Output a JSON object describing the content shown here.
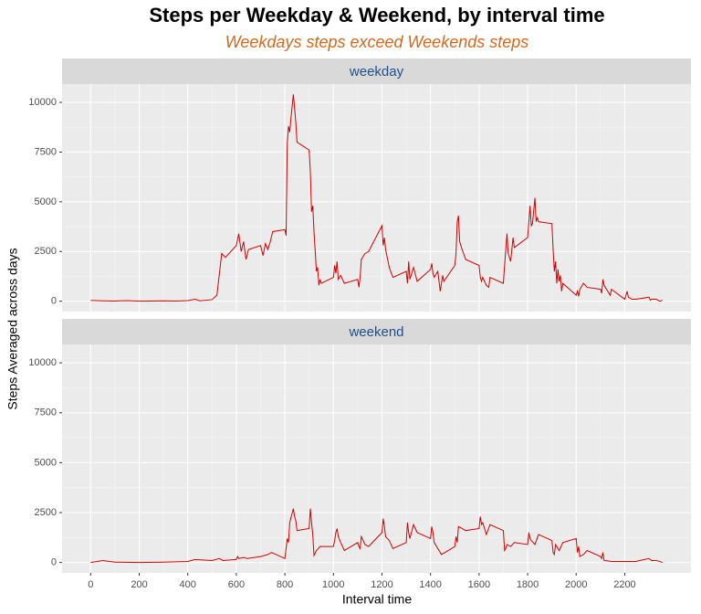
{
  "chart_data": {
    "type": "line",
    "title": "Steps per Weekday & Weekend, by interval time",
    "subtitle": "Weekdays steps exceed Weekends steps",
    "xlabel": "Interval time",
    "ylabel": "Steps Averaged across days",
    "xlim": [
      -117.75,
      2472.75
    ],
    "xticks": [
      0,
      200,
      400,
      600,
      800,
      1000,
      1200,
      1400,
      1600,
      1800,
      2000,
      2200
    ],
    "ylim": [
      -520,
      10920
    ],
    "yticks": [
      0,
      2500,
      5000,
      7500,
      10000
    ],
    "grid": true,
    "series": [
      {
        "name": "weekday",
        "color": "#d40000",
        "x": [
          0,
          50,
          100,
          150,
          200,
          250,
          300,
          350,
          400,
          430,
          450,
          500,
          520,
          540,
          555,
          600,
          610,
          620,
          630,
          640,
          650,
          700,
          710,
          720,
          730,
          740,
          750,
          800,
          805,
          810,
          815,
          820,
          825,
          835,
          840,
          845,
          850,
          900,
          905,
          910,
          915,
          920,
          930,
          935,
          940,
          945,
          950,
          1000,
          1005,
          1010,
          1015,
          1020,
          1030,
          1045,
          1100,
          1105,
          1110,
          1115,
          1130,
          1145,
          1200,
          1205,
          1210,
          1215,
          1230,
          1245,
          1300,
          1305,
          1310,
          1315,
          1330,
          1345,
          1400,
          1405,
          1410,
          1415,
          1430,
          1440,
          1450,
          1455,
          1500,
          1505,
          1510,
          1515,
          1520,
          1530,
          1545,
          1600,
          1605,
          1610,
          1615,
          1630,
          1640,
          1645,
          1700,
          1705,
          1710,
          1715,
          1720,
          1730,
          1740,
          1745,
          1800,
          1805,
          1810,
          1815,
          1820,
          1830,
          1835,
          1840,
          1845,
          1900,
          1905,
          1910,
          1915,
          1920,
          1925,
          1930,
          1935,
          1940,
          1945,
          2000,
          2005,
          2010,
          2015,
          2030,
          2045,
          2100,
          2105,
          2110,
          2115,
          2130,
          2140,
          2145,
          2200,
          2205,
          2210,
          2215,
          2230,
          2245,
          2300,
          2305,
          2310,
          2330,
          2345,
          2355
        ],
        "values": [
          40,
          20,
          10,
          30,
          5,
          10,
          20,
          10,
          30,
          100,
          20,
          80,
          300,
          2400,
          2200,
          2800,
          3400,
          2500,
          3000,
          2100,
          2600,
          2800,
          2300,
          2900,
          2600,
          3000,
          3500,
          3600,
          3300,
          8000,
          8800,
          8500,
          9200,
          10400,
          9700,
          9000,
          8000,
          7600,
          6500,
          4500,
          4800,
          3500,
          1500,
          1700,
          800,
          1100,
          900,
          1200,
          1800,
          1400,
          2000,
          1100,
          1300,
          900,
          1100,
          700,
          1200,
          2100,
          2400,
          2500,
          3800,
          2800,
          3200,
          2600,
          1700,
          1200,
          1500,
          900,
          2000,
          1100,
          1700,
          1000,
          1600,
          1900,
          1400,
          1200,
          1500,
          500,
          1300,
          1000,
          1800,
          2400,
          4000,
          4300,
          3000,
          2600,
          2100,
          1800,
          1200,
          1000,
          1200,
          800,
          700,
          1200,
          900,
          1800,
          2600,
          3400,
          2400,
          2000,
          3200,
          2700,
          3200,
          4000,
          4800,
          3800,
          3900,
          5200,
          4000,
          4200,
          4000,
          3900,
          2600,
          1500,
          2000,
          900,
          1600,
          1000,
          1300,
          500,
          900,
          300,
          500,
          250,
          600,
          900,
          700,
          600,
          400,
          1100,
          800,
          500,
          300,
          600,
          100,
          300,
          500,
          200,
          100,
          100,
          200,
          50,
          100,
          100,
          0,
          50
        ]
      },
      {
        "name": "weekend",
        "color": "#d40000",
        "x": [
          0,
          50,
          100,
          200,
          300,
          400,
          430,
          500,
          530,
          545,
          600,
          605,
          610,
          630,
          645,
          700,
          730,
          745,
          800,
          805,
          810,
          815,
          820,
          835,
          840,
          845,
          850,
          900,
          905,
          910,
          915,
          920,
          930,
          945,
          1000,
          1005,
          1010,
          1015,
          1020,
          1030,
          1045,
          1100,
          1105,
          1110,
          1115,
          1130,
          1145,
          1200,
          1205,
          1210,
          1215,
          1230,
          1245,
          1300,
          1305,
          1310,
          1315,
          1330,
          1345,
          1400,
          1405,
          1410,
          1415,
          1430,
          1445,
          1500,
          1505,
          1510,
          1515,
          1530,
          1545,
          1600,
          1605,
          1610,
          1615,
          1630,
          1645,
          1700,
          1705,
          1710,
          1715,
          1730,
          1745,
          1800,
          1805,
          1810,
          1815,
          1830,
          1845,
          1900,
          1905,
          1910,
          1915,
          1930,
          1945,
          2000,
          2005,
          2010,
          2015,
          2030,
          2045,
          2100,
          2105,
          2110,
          2115,
          2130,
          2145,
          2200,
          2245,
          2300,
          2310,
          2330,
          2345,
          2355
        ],
        "values": [
          0,
          100,
          20,
          0,
          20,
          50,
          150,
          100,
          200,
          100,
          150,
          300,
          200,
          250,
          200,
          300,
          400,
          500,
          200,
          700,
          1200,
          1000,
          2000,
          2700,
          2300,
          2100,
          1600,
          1700,
          2700,
          2000,
          1400,
          350,
          600,
          800,
          800,
          1100,
          1500,
          1700,
          1300,
          1000,
          600,
          1000,
          800,
          700,
          1300,
          900,
          800,
          1500,
          2200,
          1800,
          1300,
          1100,
          700,
          1000,
          2000,
          1500,
          1200,
          1900,
          1500,
          1200,
          1800,
          1500,
          1000,
          700,
          400,
          800,
          1300,
          1000,
          1800,
          1700,
          1600,
          1700,
          2300,
          1900,
          2000,
          1400,
          1900,
          1600,
          600,
          700,
          900,
          800,
          1000,
          900,
          1500,
          1200,
          1100,
          900,
          1400,
          1100,
          500,
          400,
          900,
          600,
          1000,
          1200,
          500,
          800,
          300,
          400,
          600,
          300,
          200,
          500,
          100,
          80,
          50,
          50,
          50,
          200,
          100,
          100,
          50,
          0
        ]
      }
    ]
  }
}
